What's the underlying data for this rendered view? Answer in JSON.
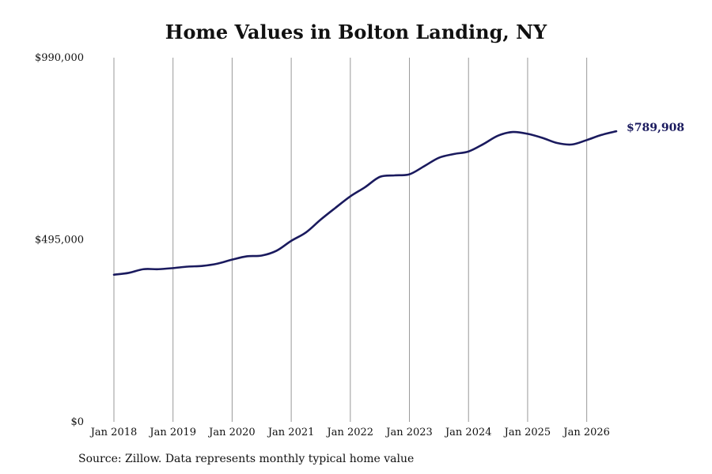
{
  "chart_data": {
    "type": "line",
    "title": "Home Values in Bolton Landing, NY",
    "source": "Source: Zillow. Data represents monthly typical home value",
    "xlabel": "",
    "ylabel": "",
    "ylim": [
      0,
      990000
    ],
    "yticks": [
      0,
      495000,
      990000
    ],
    "ytick_labels": [
      "$0",
      "$495,000",
      "$990,000"
    ],
    "xticks": [
      "Jan 2018",
      "Jan 2019",
      "Jan 2020",
      "Jan 2021",
      "Jan 2022",
      "Jan 2023",
      "Jan 2024",
      "Jan 2025",
      "Jan 2026"
    ],
    "xlim": [
      "2018-01",
      "2026-07"
    ],
    "grid": "vertical",
    "line_color": "#1a1a5e",
    "grid_color": "#999999",
    "end_label": "$789,908",
    "series": [
      {
        "name": "",
        "points": [
          [
            "2018-01",
            400000
          ],
          [
            "2018-04",
            405000
          ],
          [
            "2018-07",
            415000
          ],
          [
            "2018-10",
            415000
          ],
          [
            "2019-01",
            418000
          ],
          [
            "2019-04",
            422000
          ],
          [
            "2019-07",
            424000
          ],
          [
            "2019-10",
            430000
          ],
          [
            "2020-01",
            441000
          ],
          [
            "2020-04",
            450000
          ],
          [
            "2020-07",
            452000
          ],
          [
            "2020-10",
            465000
          ],
          [
            "2021-01",
            492000
          ],
          [
            "2021-04",
            515000
          ],
          [
            "2021-07",
            550000
          ],
          [
            "2021-10",
            582000
          ],
          [
            "2022-01",
            613000
          ],
          [
            "2022-04",
            638000
          ],
          [
            "2022-07",
            666000
          ],
          [
            "2022-10",
            670000
          ],
          [
            "2023-01",
            673000
          ],
          [
            "2023-04",
            695000
          ],
          [
            "2023-07",
            718000
          ],
          [
            "2023-10",
            728000
          ],
          [
            "2024-01",
            735000
          ],
          [
            "2024-04",
            755000
          ],
          [
            "2024-07",
            778000
          ],
          [
            "2024-10",
            788000
          ],
          [
            "2025-01",
            783000
          ],
          [
            "2025-04",
            772000
          ],
          [
            "2025-07",
            758000
          ],
          [
            "2025-10",
            754000
          ],
          [
            "2026-01",
            766000
          ],
          [
            "2026-04",
            780000
          ],
          [
            "2026-07",
            789908
          ]
        ]
      }
    ]
  }
}
